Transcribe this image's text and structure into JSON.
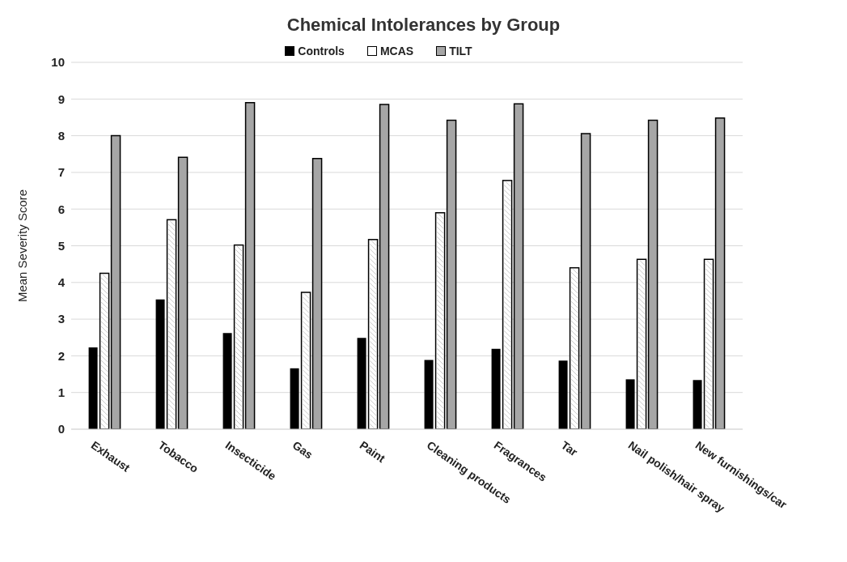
{
  "chart_data": {
    "type": "bar",
    "title": "Chemical Intolerances by Group",
    "ylabel": "Mean Severity Score",
    "categories": [
      "Exhaust",
      "Tobacco",
      "Insecticide",
      "Gas",
      "Paint",
      "Cleaning products",
      "Fragrances",
      "Tar",
      "Nail polish/hair spray",
      "New furnishings/car"
    ],
    "series": [
      {
        "name": "Controls",
        "color": "#000000",
        "values": [
          2.23,
          3.54,
          2.62,
          1.66,
          2.49,
          1.89,
          2.19,
          1.87,
          1.36,
          1.34
        ]
      },
      {
        "name": "MCAS",
        "color": "#ffffff",
        "values": [
          4.25,
          5.71,
          5.02,
          3.73,
          5.17,
          5.9,
          6.78,
          4.4,
          4.63,
          4.63
        ]
      },
      {
        "name": "TILT",
        "color": "#a6a6a6",
        "values": [
          8.0,
          7.41,
          8.9,
          7.38,
          8.85,
          8.42,
          8.87,
          8.06,
          8.42,
          8.48
        ]
      }
    ],
    "ylim": [
      0,
      10
    ],
    "yticks": [
      0,
      1,
      2,
      3,
      4,
      5,
      6,
      7,
      8,
      9,
      10
    ],
    "grid": "y",
    "legend": "top"
  }
}
